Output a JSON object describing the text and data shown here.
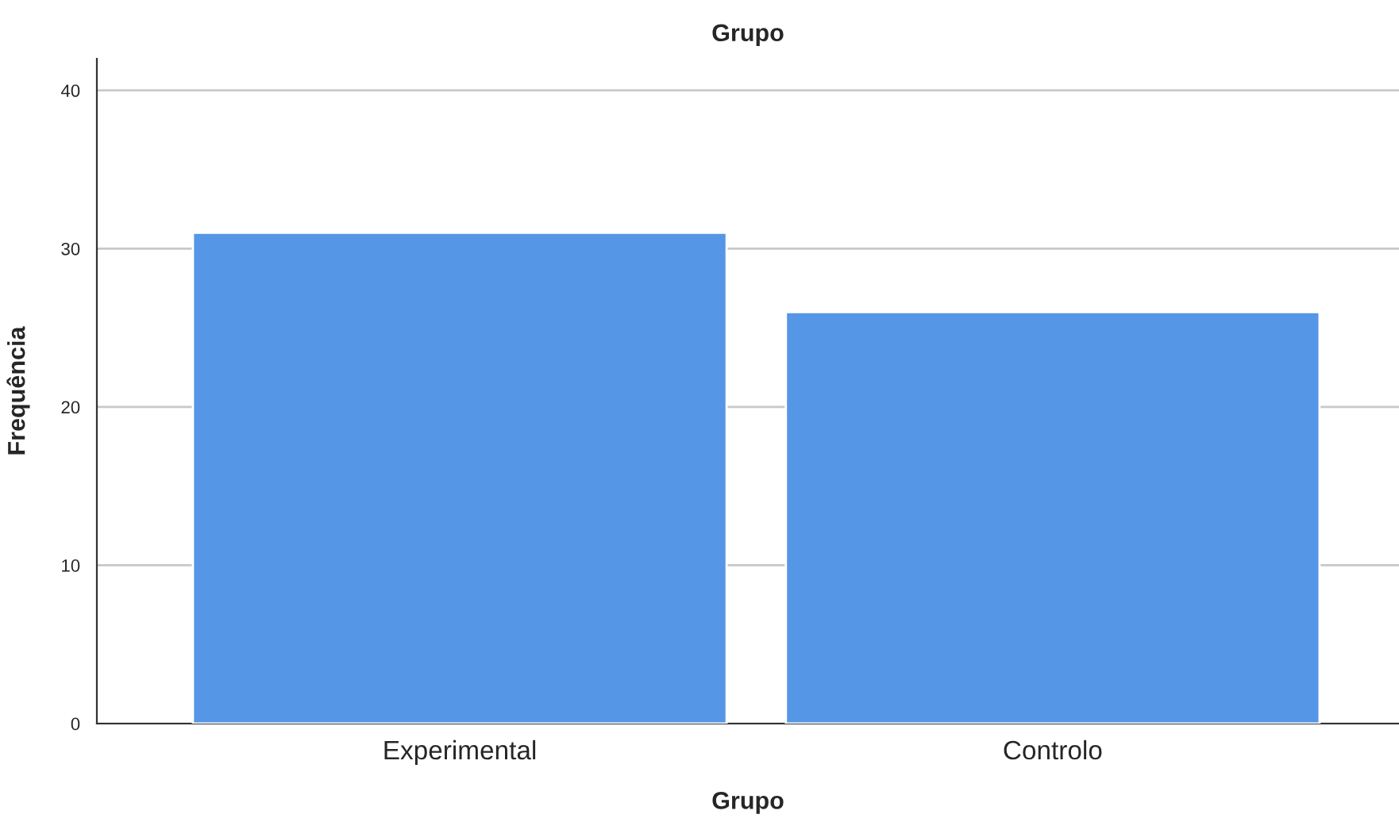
{
  "chart_data": {
    "type": "bar",
    "title": "Grupo",
    "xlabel": "Grupo",
    "ylabel": "Frequência",
    "categories": [
      "Experimental",
      "Controlo"
    ],
    "values": [
      31,
      26
    ],
    "color": "#5596e6",
    "ylim": [
      0,
      42
    ],
    "yticks": [
      0,
      10,
      20,
      30,
      40
    ],
    "grid": "y"
  }
}
